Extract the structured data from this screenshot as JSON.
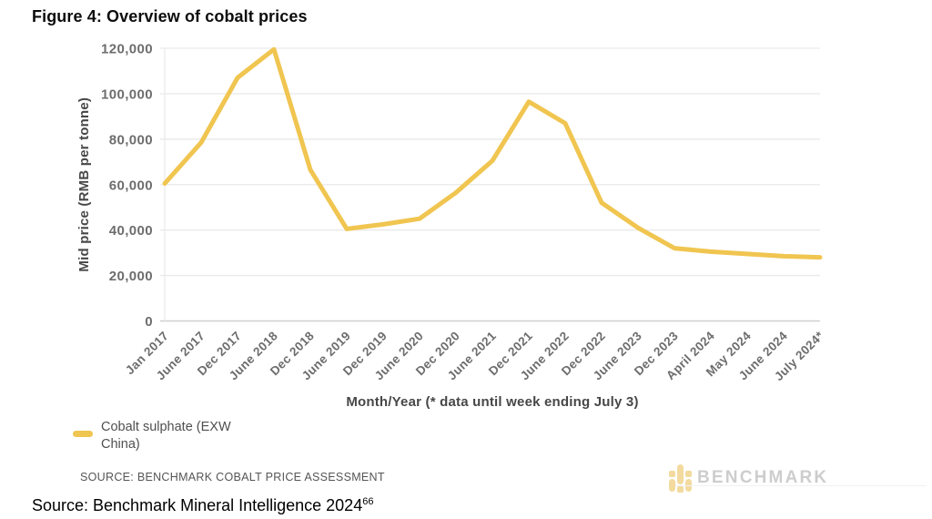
{
  "page": {
    "title": "Figure 4: Overview of cobalt prices",
    "footer": {
      "text": "Source: Benchmark Mineral Intelligence 2024",
      "superscript": "66"
    }
  },
  "chart_data": {
    "type": "line",
    "title": "Figure 4: Overview of cobalt prices",
    "xlabel": "Month/Year (* data until week ending July 3)",
    "ylabel": "Mid price (RMB per tonne)",
    "categories": [
      "Jan 2017",
      "June 2017",
      "Dec 2017",
      "June 2018",
      "Dec 2018",
      "June 2019",
      "Dec 2019",
      "June 2020",
      "Dec 2020",
      "June 2021",
      "Dec 2021",
      "June 2022",
      "Dec 2022",
      "June 2023",
      "Dec 2023",
      "April 2024",
      "May 2024",
      "June 2024",
      "July 2024*"
    ],
    "series": [
      {
        "name": "Cobalt sulphate (EXW China)",
        "color": "#F0C550",
        "values": [
          60500,
          78500,
          107000,
          119500,
          66500,
          40500,
          42500,
          45000,
          56500,
          70500,
          96500,
          87000,
          52000,
          41000,
          32000,
          30500,
          29500,
          28500,
          28000
        ]
      }
    ],
    "ylim": [
      0,
      120000
    ],
    "yticks": [
      0,
      20000,
      40000,
      60000,
      80000,
      100000,
      120000
    ],
    "ytick_labels": [
      "0",
      "20,000",
      "40,000",
      "60,000",
      "80,000",
      "100,000",
      "120,000"
    ],
    "grid": "horizontal",
    "grid_color": "#eaeaea",
    "axis_line_color": "#cfcfcf",
    "tick_label_color": "#6d6d6d",
    "legend_position": "bottom-left"
  },
  "legend": {
    "label": "Cobalt sulphate (EXW China)",
    "swatch_color": "#F0C550"
  },
  "source_note": "SOURCE: BENCHMARK COBALT PRICE ASSESSMENT",
  "watermark": {
    "brand": "BENCHMARK",
    "icon": "benchmark-squares-logo",
    "text_color": "#cdcdcd",
    "icon_color": "#F3DA9E"
  }
}
